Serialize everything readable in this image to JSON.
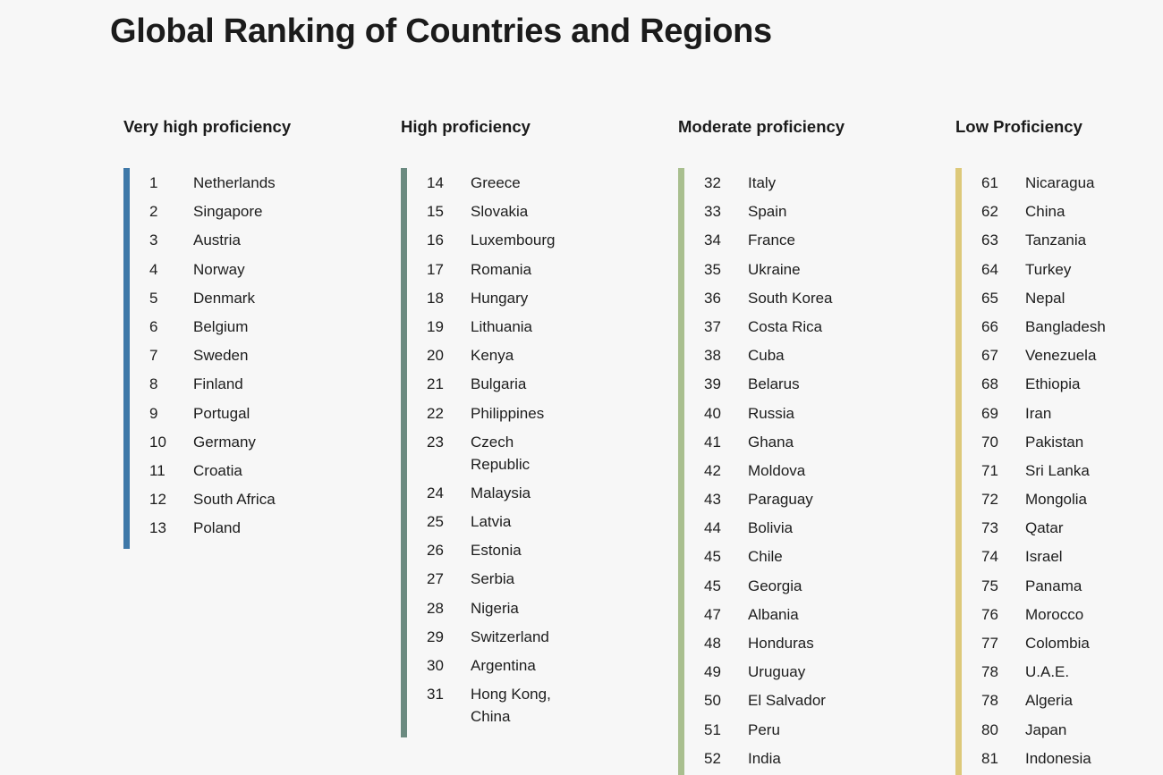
{
  "page_title": "Global Ranking of Countries and Regions",
  "columns": [
    {
      "heading": "Very high proficiency",
      "accent_color": "#3e78a8",
      "rows": [
        {
          "rank": "1",
          "country": "Netherlands"
        },
        {
          "rank": "2",
          "country": "Singapore"
        },
        {
          "rank": "3",
          "country": "Austria"
        },
        {
          "rank": "4",
          "country": "Norway"
        },
        {
          "rank": "5",
          "country": "Denmark"
        },
        {
          "rank": "6",
          "country": "Belgium"
        },
        {
          "rank": "7",
          "country": "Sweden"
        },
        {
          "rank": "8",
          "country": "Finland"
        },
        {
          "rank": "9",
          "country": "Portugal"
        },
        {
          "rank": "10",
          "country": "Germany"
        },
        {
          "rank": "11",
          "country": "Croatia"
        },
        {
          "rank": "12",
          "country": "South Africa"
        },
        {
          "rank": "13",
          "country": "Poland"
        }
      ]
    },
    {
      "heading": "High proficiency",
      "accent_color": "#6b8a80",
      "rows": [
        {
          "rank": "14",
          "country": "Greece"
        },
        {
          "rank": "15",
          "country": "Slovakia"
        },
        {
          "rank": "16",
          "country": "Luxembourg"
        },
        {
          "rank": "17",
          "country": "Romania"
        },
        {
          "rank": "18",
          "country": "Hungary"
        },
        {
          "rank": "19",
          "country": "Lithuania"
        },
        {
          "rank": "20",
          "country": "Kenya"
        },
        {
          "rank": "21",
          "country": "Bulgaria"
        },
        {
          "rank": "22",
          "country": "Philippines"
        },
        {
          "rank": "23",
          "country": "Czech Republic"
        },
        {
          "rank": "24",
          "country": "Malaysia"
        },
        {
          "rank": "25",
          "country": "Latvia"
        },
        {
          "rank": "26",
          "country": "Estonia"
        },
        {
          "rank": "27",
          "country": "Serbia"
        },
        {
          "rank": "28",
          "country": "Nigeria"
        },
        {
          "rank": "29",
          "country": "Switzerland"
        },
        {
          "rank": "30",
          "country": "Argentina"
        },
        {
          "rank": "31",
          "country": "Hong Kong, China"
        }
      ]
    },
    {
      "heading": "Moderate proficiency",
      "accent_color": "#a9bf8f",
      "rows": [
        {
          "rank": "32",
          "country": "Italy"
        },
        {
          "rank": "33",
          "country": "Spain"
        },
        {
          "rank": "34",
          "country": "France"
        },
        {
          "rank": "35",
          "country": "Ukraine"
        },
        {
          "rank": "36",
          "country": "South Korea"
        },
        {
          "rank": "37",
          "country": "Costa Rica"
        },
        {
          "rank": "38",
          "country": "Cuba"
        },
        {
          "rank": "39",
          "country": "Belarus"
        },
        {
          "rank": "40",
          "country": "Russia"
        },
        {
          "rank": "41",
          "country": "Ghana"
        },
        {
          "rank": "42",
          "country": "Moldova"
        },
        {
          "rank": "43",
          "country": "Paraguay"
        },
        {
          "rank": "44",
          "country": "Bolivia"
        },
        {
          "rank": "45",
          "country": "Chile"
        },
        {
          "rank": "45",
          "country": "Georgia"
        },
        {
          "rank": "47",
          "country": "Albania"
        },
        {
          "rank": "48",
          "country": "Honduras"
        },
        {
          "rank": "49",
          "country": "Uruguay"
        },
        {
          "rank": "50",
          "country": "El Salvador"
        },
        {
          "rank": "51",
          "country": "Peru"
        },
        {
          "rank": "52",
          "country": "India"
        }
      ]
    },
    {
      "heading": "Low Proficiency",
      "accent_color": "#ddc97a",
      "rows": [
        {
          "rank": "61",
          "country": "Nicaragua"
        },
        {
          "rank": "62",
          "country": "China"
        },
        {
          "rank": "63",
          "country": "Tanzania"
        },
        {
          "rank": "64",
          "country": "Turkey"
        },
        {
          "rank": "65",
          "country": "Nepal"
        },
        {
          "rank": "66",
          "country": "Bangladesh"
        },
        {
          "rank": "67",
          "country": "Venezuela"
        },
        {
          "rank": "68",
          "country": "Ethiopia"
        },
        {
          "rank": "69",
          "country": "Iran"
        },
        {
          "rank": "70",
          "country": "Pakistan"
        },
        {
          "rank": "71",
          "country": "Sri Lanka"
        },
        {
          "rank": "72",
          "country": "Mongolia"
        },
        {
          "rank": "73",
          "country": "Qatar"
        },
        {
          "rank": "74",
          "country": "Israel"
        },
        {
          "rank": "75",
          "country": "Panama"
        },
        {
          "rank": "76",
          "country": "Morocco"
        },
        {
          "rank": "77",
          "country": "Colombia"
        },
        {
          "rank": "78",
          "country": "U.A.E."
        },
        {
          "rank": "78",
          "country": "Algeria"
        },
        {
          "rank": "80",
          "country": "Japan"
        },
        {
          "rank": "81",
          "country": "Indonesia"
        }
      ]
    }
  ]
}
